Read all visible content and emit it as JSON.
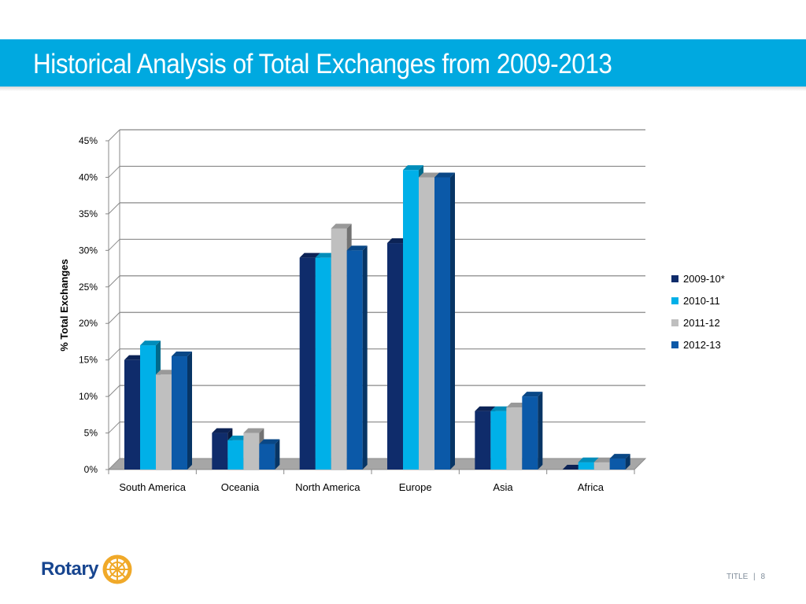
{
  "slide": {
    "title": "Historical Analysis of Total Exchanges from 2009-2013",
    "footer": {
      "label": "TITLE",
      "separator": "|",
      "page": "8"
    },
    "logo_text": "Rotary"
  },
  "colors": {
    "accent": "#00a9e0",
    "series": [
      "#0f2c6b",
      "#00b0e8",
      "#bfbfbf",
      "#0b59a8"
    ],
    "logo": "#17458f",
    "wheel": "#f0a929"
  },
  "chart_data": {
    "type": "bar",
    "variant": "3d-clustered-column",
    "categories": [
      "South America",
      "Oceania",
      "North America",
      "Europe",
      "Asia",
      "Africa"
    ],
    "series": [
      {
        "name": "2009-10*",
        "values": [
          15,
          5,
          29,
          31,
          8,
          0
        ]
      },
      {
        "name": "2010-11",
        "values": [
          17,
          4,
          29,
          41,
          8,
          1
        ]
      },
      {
        "name": "2011-12",
        "values": [
          13,
          5,
          33,
          40,
          8.5,
          1
        ]
      },
      {
        "name": "2012-13",
        "values": [
          15.5,
          3.5,
          30,
          40,
          10,
          1.5
        ]
      }
    ],
    "title": "",
    "xlabel": "",
    "ylabel": "% Total Exchanges",
    "ylim": [
      0,
      45
    ],
    "yticks": [
      "0%",
      "5%",
      "10%",
      "15%",
      "20%",
      "25%",
      "30%",
      "35%",
      "40%",
      "45%"
    ],
    "grid": true,
    "legend": "right"
  }
}
